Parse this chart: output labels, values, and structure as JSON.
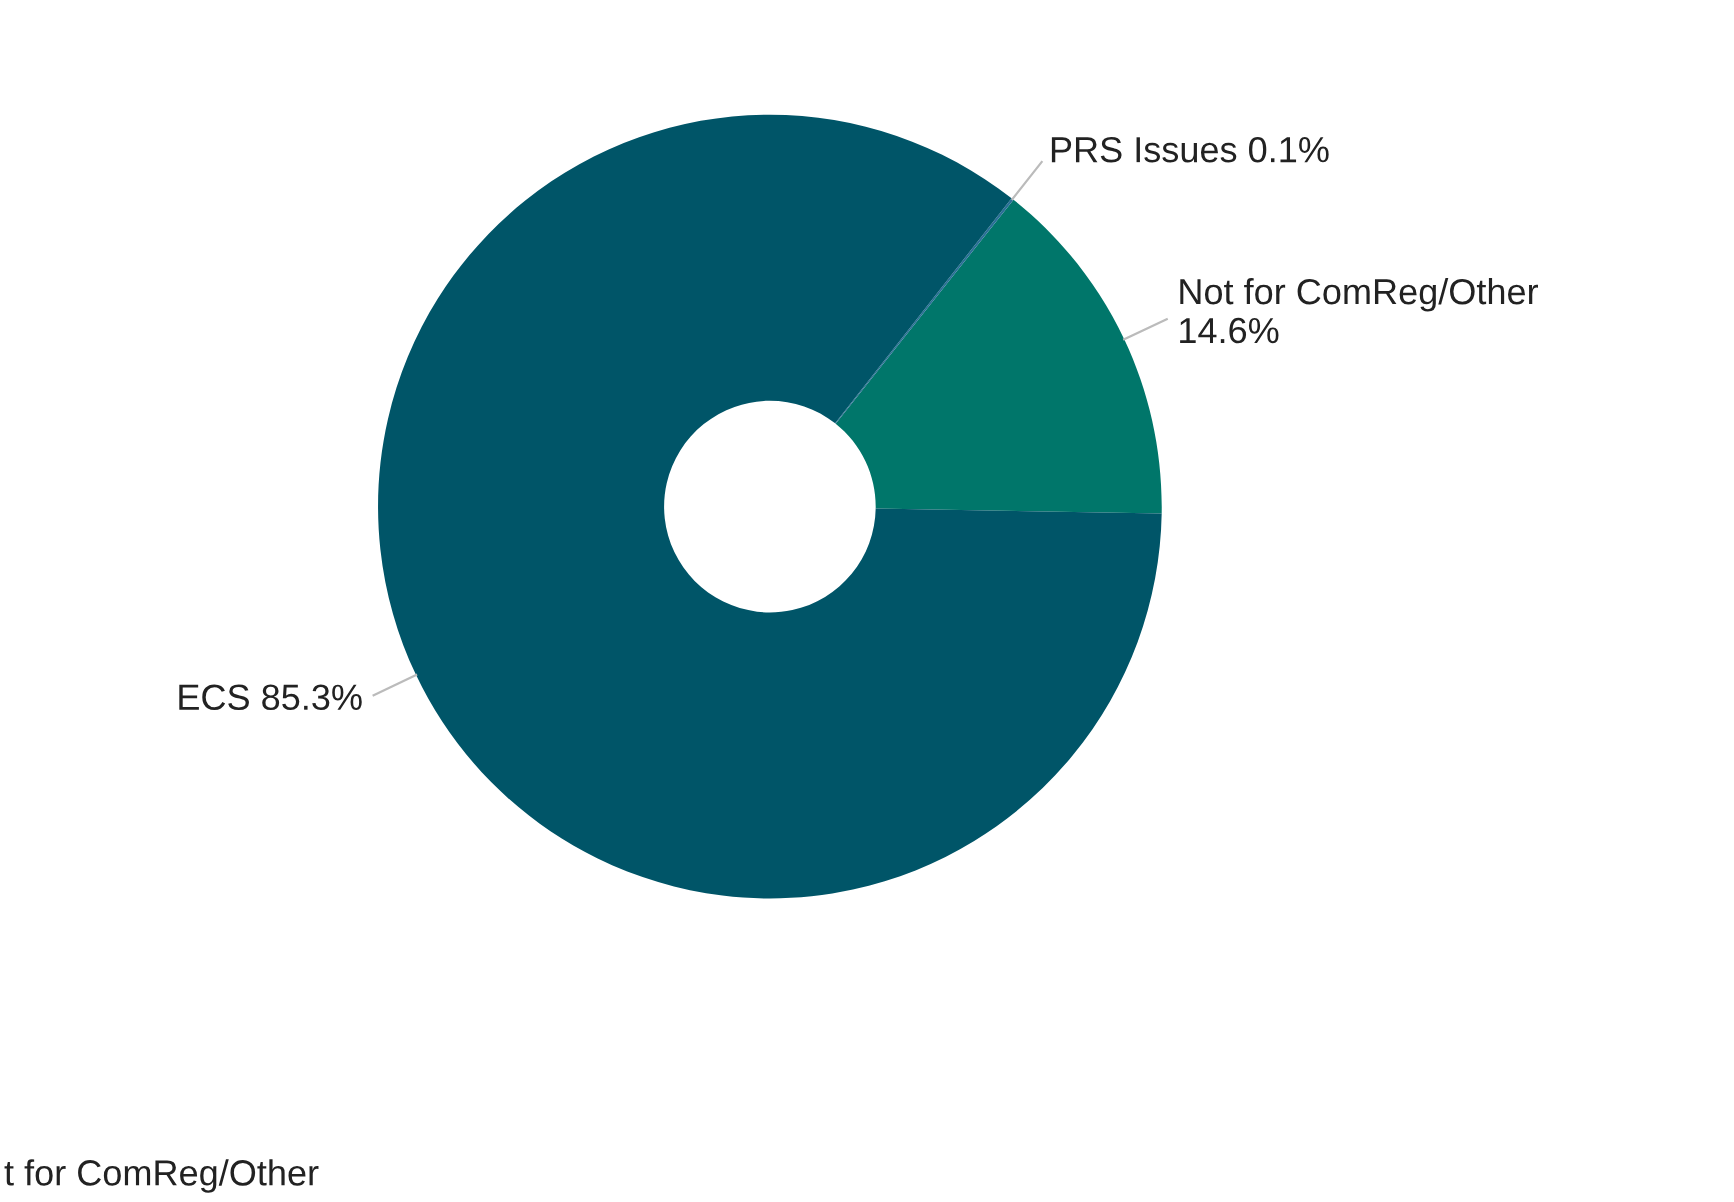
{
  "chart_data": {
    "type": "donut",
    "categories": [
      "Not for ComReg/Other",
      "PRS Issues",
      "ECS"
    ],
    "values": [
      14.6,
      0.1,
      85.3
    ],
    "value_labels": [
      "14.6%",
      "0.1%",
      "85.3%"
    ],
    "colors": [
      "#00766a",
      "#2a6f97",
      "#005568"
    ],
    "legend": false,
    "annotations": [
      "t for ComReg/Other"
    ]
  }
}
